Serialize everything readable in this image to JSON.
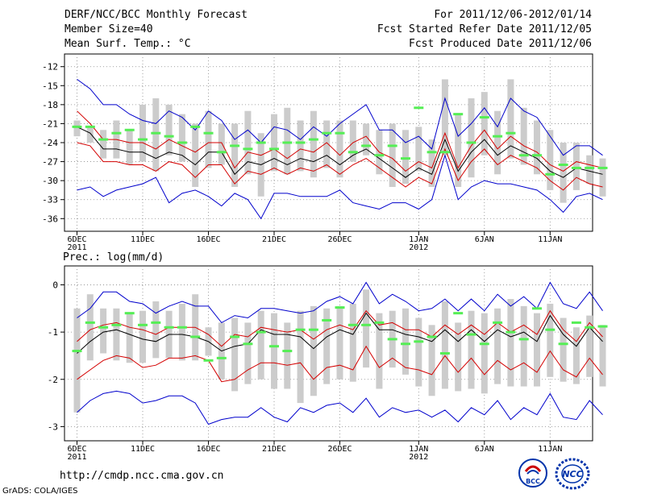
{
  "header": {
    "title": "DERF/NCC/BCC Monthly Forecast",
    "member_size": "Member Size=40",
    "variable": "Mean Surf. Temp.: °C",
    "period": "For 2011/12/06-2012/01/14",
    "fcst_started": "Fcst Started Refer Date 2011/12/05",
    "fcst_produced": "Fcst Produced Date 2011/12/06"
  },
  "footer": {
    "url": "http://cmdp.ncc.cma.gov.cn",
    "grads": "GrADS: COLA/IGES",
    "logo_bcc": "BCC",
    "logo_ncc": "NCC"
  },
  "colors": {
    "mean": "#000000",
    "inner": "#d40000",
    "outer": "#0000cc",
    "box": "#cccccc",
    "marker": "#55ee55"
  },
  "chart_data": [
    {
      "type": "line",
      "title": "Mean Surf. Temp.: °C",
      "ylim": [
        -38,
        -10
      ],
      "yticks": [
        -12,
        -15,
        -18,
        -21,
        -24,
        -27,
        -30,
        -33,
        -36
      ],
      "xticks": [
        {
          "day": 0,
          "label": "6DEC",
          "sub": "2011"
        },
        {
          "day": 5,
          "label": "11DEC"
        },
        {
          "day": 10,
          "label": "16DEC"
        },
        {
          "day": 15,
          "label": "21DEC"
        },
        {
          "day": 20,
          "label": "26DEC"
        },
        {
          "day": 26,
          "label": "1JAN",
          "sub": "2012"
        },
        {
          "day": 31,
          "label": "6JAN"
        },
        {
          "day": 36,
          "label": "11JAN"
        }
      ],
      "series": [
        {
          "name": "max",
          "values": [
            -14,
            -15.5,
            -18,
            -18,
            -19.5,
            -20.5,
            -21,
            -19,
            -20,
            -22,
            -19,
            -20.5,
            -23.5,
            -22,
            -24,
            -21.5,
            -22,
            -23.5,
            -21.5,
            -23,
            -21,
            -19.5,
            -18,
            -22,
            -22,
            -24,
            -23,
            -25,
            -17,
            -23,
            -21,
            -18.5,
            -21.5,
            -17,
            -19,
            -20,
            -23,
            -26,
            -24.5,
            -24.5,
            -26
          ]
        },
        {
          "name": "upper",
          "values": [
            -19,
            -21,
            -23.5,
            -23.5,
            -24,
            -24,
            -25,
            -23.5,
            -24.5,
            -25.5,
            -24,
            -24,
            -28,
            -25.5,
            -26,
            -25,
            -26.5,
            -25,
            -25.5,
            -24,
            -26,
            -24,
            -23,
            -25.5,
            -26.5,
            -28.5,
            -27,
            -28,
            -22.5,
            -28,
            -24.5,
            -22,
            -25,
            -23,
            -24.5,
            -25.5,
            -27.5,
            -28.5,
            -27,
            -27.5,
            -28
          ]
        },
        {
          "name": "mean",
          "values": [
            -21.5,
            -22.5,
            -25,
            -25,
            -25.5,
            -25.5,
            -26.5,
            -25.5,
            -26,
            -27.5,
            -25.5,
            -25.5,
            -29,
            -27,
            -27.5,
            -26.5,
            -27.5,
            -26.5,
            -27,
            -26,
            -27.5,
            -26,
            -25,
            -26.5,
            -28,
            -29.5,
            -28,
            -29,
            -23.5,
            -28.5,
            -25.5,
            -23.5,
            -26,
            -24.5,
            -25.5,
            -26.5,
            -28.5,
            -29.5,
            -28,
            -28.5,
            -29
          ]
        },
        {
          "name": "lower",
          "values": [
            -24,
            -24.5,
            -27,
            -27,
            -27.5,
            -27.5,
            -28.5,
            -27,
            -27.5,
            -29.5,
            -27.5,
            -27.5,
            -30.5,
            -28.5,
            -29,
            -28,
            -29,
            -28,
            -28.5,
            -27.5,
            -29,
            -27.5,
            -26.5,
            -28,
            -29.5,
            -31,
            -29.5,
            -30.5,
            -25,
            -30,
            -27,
            -25,
            -27.5,
            -26,
            -27,
            -28,
            -30,
            -31.5,
            -29.5,
            -30.5,
            -31
          ]
        },
        {
          "name": "min",
          "values": [
            -31.5,
            -31,
            -32.5,
            -31.5,
            -31,
            -30.5,
            -29.5,
            -33.5,
            -32,
            -31.5,
            -32.5,
            -34,
            -32,
            -33,
            -36,
            -32,
            -32,
            -32.5,
            -32.5,
            -32.5,
            -31.5,
            -33.5,
            -34,
            -34.5,
            -33.5,
            -33.5,
            -34.5,
            -33,
            -26,
            -33,
            -31,
            -30,
            -30.5,
            -30.5,
            -31,
            -31.5,
            -33,
            -35,
            -32.5,
            -32,
            -33
          ]
        }
      ],
      "boxes": {
        "low": [
          -23,
          -24,
          -26.5,
          -26.5,
          -27.5,
          -27,
          -28.5,
          -26,
          -27,
          -31,
          -28,
          -27.5,
          -31,
          -29,
          -32.5,
          -28.5,
          -29,
          -28.5,
          -29.5,
          -28,
          -29.5,
          -27,
          -26,
          -29,
          -31,
          -30.5,
          -28.5,
          -31,
          -26,
          -31,
          -29.5,
          -26,
          -29,
          -26.5,
          -27.5,
          -29,
          -31.5,
          -33.5,
          -31.5,
          -30.5,
          -32.5
        ],
        "high": [
          -20.5,
          -21.5,
          -22,
          -20.5,
          -22,
          -18,
          -17,
          -18,
          -19.5,
          -21,
          -19,
          -21,
          -21,
          -19,
          -22.5,
          -19.5,
          -18.5,
          -20.5,
          -19,
          -20.5,
          -20.5,
          -20.5,
          -21,
          -22,
          -21,
          -22,
          -21.5,
          -23.5,
          -14,
          -19.5,
          -17,
          -16,
          -19,
          -14,
          -18.5,
          -20.5,
          -22,
          -24,
          -24,
          -26,
          -26.5
        ]
      },
      "markers": [
        -21.5,
        -21.5,
        -23.5,
        -22.5,
        -22,
        -23.5,
        -22.5,
        -23,
        -24,
        -21.5,
        -22.5,
        -25.5,
        -24.5,
        -25,
        -24,
        -25,
        -24,
        -24,
        -23.5,
        -22.5,
        -22.5,
        -25.5,
        -24.5,
        -26,
        -24.5,
        -26.5,
        -18.5,
        -25.5,
        -25.5,
        -19.5,
        -24,
        -20,
        -23,
        -22.5,
        -26,
        -26,
        -29,
        -27.5,
        -28,
        -28,
        -28
      ]
    },
    {
      "type": "line",
      "title": "Prec.: log(mm/d)",
      "ylim": [
        -3.3,
        0.4
      ],
      "yticks": [
        0,
        -1,
        -2,
        -3
      ],
      "xticks": [
        {
          "day": 0,
          "label": "6DEC",
          "sub": "2011"
        },
        {
          "day": 5,
          "label": "11DEC"
        },
        {
          "day": 10,
          "label": "16DEC"
        },
        {
          "day": 15,
          "label": "21DEC"
        },
        {
          "day": 20,
          "label": "26DEC"
        },
        {
          "day": 26,
          "label": "1JAN",
          "sub": "2012"
        },
        {
          "day": 31,
          "label": "6JAN"
        },
        {
          "day": 36,
          "label": "11JAN"
        }
      ],
      "series": [
        {
          "name": "max",
          "values": [
            -0.7,
            -0.5,
            -0.15,
            -0.15,
            -0.35,
            -0.4,
            -0.6,
            -0.45,
            -0.35,
            -0.45,
            -0.45,
            -0.8,
            -0.65,
            -0.7,
            -0.5,
            -0.5,
            -0.55,
            -0.6,
            -0.55,
            -0.35,
            -0.25,
            -0.4,
            0.05,
            -0.4,
            -0.2,
            -0.35,
            -0.55,
            -0.5,
            -0.3,
            -0.55,
            -0.3,
            -0.55,
            -0.2,
            -0.45,
            -0.25,
            -0.5,
            0.05,
            -0.4,
            -0.5,
            -0.15,
            -0.55
          ]
        },
        {
          "name": "upper",
          "values": [
            -1.2,
            -0.95,
            -0.85,
            -0.8,
            -0.9,
            -0.95,
            -1.05,
            -0.9,
            -0.9,
            -0.9,
            -1.05,
            -1.3,
            -1.05,
            -1.1,
            -0.9,
            -0.95,
            -1,
            -0.95,
            -1.15,
            -0.95,
            -0.85,
            -0.95,
            -0.55,
            -0.85,
            -0.8,
            -0.95,
            -0.95,
            -1.1,
            -0.85,
            -1.05,
            -0.85,
            -1.05,
            -0.8,
            -1,
            -0.85,
            -1.05,
            -0.55,
            -0.95,
            -1.2,
            -0.8,
            -1.1
          ]
        },
        {
          "name": "mean",
          "values": [
            -1.45,
            -1.2,
            -1,
            -0.95,
            -1.05,
            -1.15,
            -1.2,
            -1.05,
            -1.05,
            -1.1,
            -1.2,
            -1.4,
            -1.3,
            -1.25,
            -0.95,
            -1.05,
            -1.05,
            -1.1,
            -1.35,
            -1.1,
            -0.95,
            -1.05,
            -0.6,
            -0.95,
            -0.95,
            -1.05,
            -1.1,
            -1.2,
            -0.95,
            -1.2,
            -0.95,
            -1.2,
            -0.95,
            -1.1,
            -1,
            -1.2,
            -0.65,
            -1.05,
            -1.3,
            -0.9,
            -1.2
          ]
        },
        {
          "name": "lower",
          "values": [
            -2,
            -1.8,
            -1.6,
            -1.5,
            -1.55,
            -1.75,
            -1.7,
            -1.55,
            -1.55,
            -1.5,
            -1.6,
            -2.05,
            -2,
            -1.8,
            -1.65,
            -1.65,
            -1.7,
            -1.65,
            -2,
            -1.75,
            -1.7,
            -1.8,
            -1.3,
            -1.75,
            -1.55,
            -1.75,
            -1.8,
            -1.9,
            -1.5,
            -1.85,
            -1.55,
            -1.9,
            -1.6,
            -1.8,
            -1.65,
            -1.85,
            -1.4,
            -1.8,
            -1.95,
            -1.55,
            -1.9
          ]
        },
        {
          "name": "min",
          "values": [
            -2.7,
            -2.45,
            -2.3,
            -2.25,
            -2.3,
            -2.5,
            -2.45,
            -2.35,
            -2.35,
            -2.5,
            -2.95,
            -2.85,
            -2.8,
            -2.8,
            -2.6,
            -2.8,
            -2.9,
            -2.6,
            -2.7,
            -2.55,
            -2.5,
            -2.7,
            -2.4,
            -2.8,
            -2.6,
            -2.7,
            -2.65,
            -2.8,
            -2.65,
            -2.9,
            -2.6,
            -2.75,
            -2.45,
            -2.85,
            -2.6,
            -2.75,
            -2.3,
            -2.8,
            -2.85,
            -2.45,
            -2.75
          ]
        }
      ],
      "boxes": {
        "low": [
          -2.7,
          -1.6,
          -1.45,
          -1.6,
          -1.65,
          -1.65,
          -1.55,
          -1.55,
          -1.6,
          -1.6,
          -1.5,
          -2,
          -2.25,
          -2.1,
          -2,
          -2.2,
          -2.2,
          -2.5,
          -2.35,
          -2.1,
          -2,
          -2.05,
          -1.75,
          -2.2,
          -1.75,
          -1.9,
          -2.15,
          -2.35,
          -2.2,
          -2.25,
          -2.2,
          -2.3,
          -2.1,
          -2.15,
          -2.15,
          -2.15,
          -1.95,
          -2.05,
          -2.1,
          -1.95,
          -2.15
        ],
        "high": [
          -0.5,
          -0.2,
          -0.5,
          -0.5,
          -0.6,
          -0.55,
          -0.35,
          -0.55,
          -0.4,
          -0.2,
          -0.9,
          -0.8,
          -0.7,
          -0.8,
          -0.55,
          -0.6,
          -0.8,
          -0.55,
          -0.45,
          -0.5,
          -0.45,
          -0.4,
          -0.1,
          -0.6,
          -0.55,
          -0.5,
          -0.7,
          -0.85,
          -0.35,
          -0.8,
          -0.55,
          -0.6,
          -0.5,
          -0.3,
          -0.45,
          -0.6,
          -0.4,
          -0.7,
          -0.9,
          -0.65,
          -0.85
        ]
      },
      "markers": [
        -1.4,
        -0.8,
        -0.9,
        -0.85,
        -0.6,
        -0.85,
        -0.8,
        -0.9,
        -0.9,
        -1.1,
        -1.6,
        -1.55,
        -1.1,
        -1.25,
        -1,
        -1.3,
        -1.4,
        -0.95,
        -0.95,
        -0.75,
        -0.48,
        -0.85,
        -0.85,
        -0.8,
        -1.15,
        -1.25,
        -1.2,
        -1.1,
        -1.45,
        -0.6,
        -1.05,
        -1.25,
        -0.8,
        -1.0,
        -1.15,
        -0.5,
        -0.95,
        -1.25,
        -0.8,
        -0.9,
        -0.88
      ]
    }
  ]
}
